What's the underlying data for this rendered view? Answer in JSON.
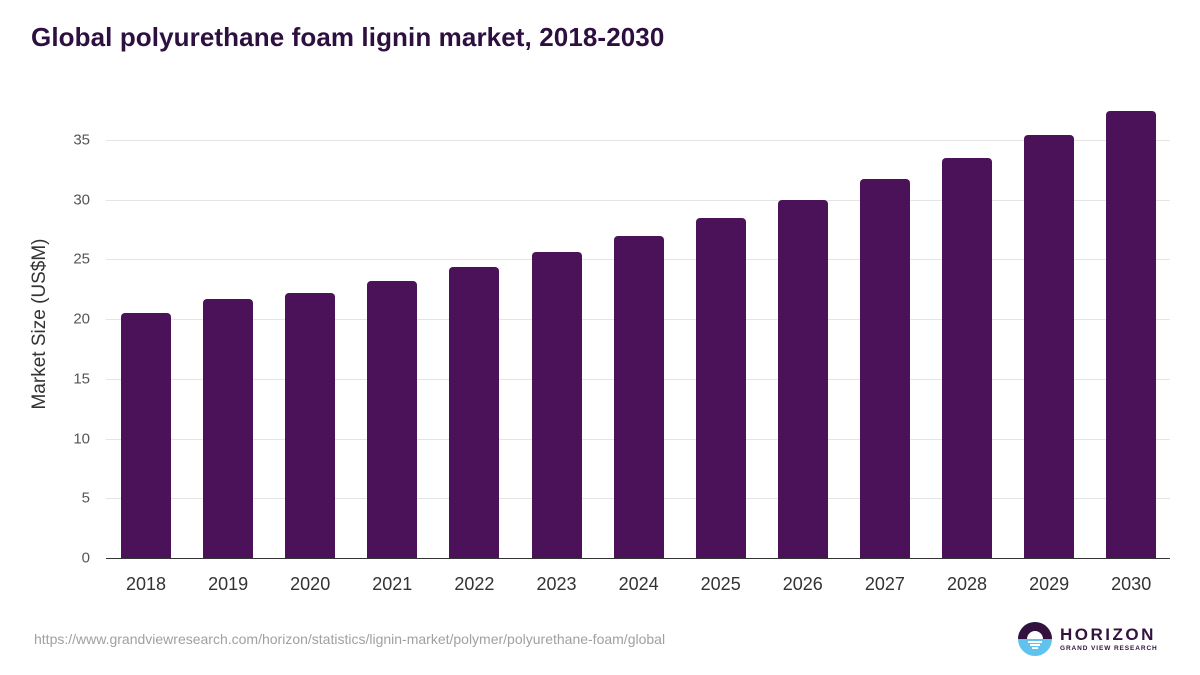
{
  "title": "Global polyurethane foam lignin market, 2018-2030",
  "source_url": "https://www.grandviewresearch.com/horizon/statistics/lignin-market/polymer/polyurethane-foam/global",
  "logo": {
    "name": "HORIZON",
    "subtitle": "GRAND VIEW RESEARCH"
  },
  "colors": {
    "bar": "#4b1159",
    "title": "#2d1040",
    "grid": "#e4e4e4",
    "logo_dark": "#33123e",
    "logo_light": "#5fc3ee"
  },
  "chart_data": {
    "type": "bar",
    "title": "Global polyurethane foam lignin market, 2018-2030",
    "xlabel": "",
    "ylabel": "Market Size (US$M)",
    "categories": [
      "2018",
      "2019",
      "2020",
      "2021",
      "2022",
      "2023",
      "2024",
      "2025",
      "2026",
      "2027",
      "2028",
      "2029",
      "2030"
    ],
    "values": [
      20.5,
      21.7,
      22.2,
      23.2,
      24.4,
      25.6,
      27.0,
      28.5,
      30.0,
      31.7,
      33.5,
      35.4,
      37.4
    ],
    "yticks": [
      "0",
      "5",
      "10",
      "15",
      "20",
      "25",
      "30",
      "35"
    ],
    "ylim": [
      0,
      37.5
    ],
    "grid": true,
    "legend": null
  }
}
